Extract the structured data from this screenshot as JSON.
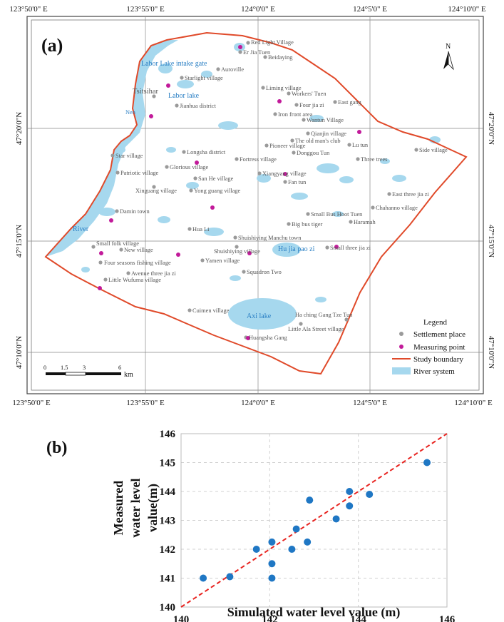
{
  "panel_a": {
    "label": "(a)",
    "top_ticks": [
      "123°50'0\" E",
      "123°55'0\" E",
      "124°0'0\" E",
      "124°5'0\" E",
      "124°10'0\" E"
    ],
    "bottom_ticks": [
      "123°50'0\" E",
      "123°55'0\" E",
      "124°0'0\" E",
      "124°5'0\" E",
      "124°10'0\" E"
    ],
    "left_ticks": [
      "47°20'0\"N",
      "47°15'0\"N",
      "47°10'0\"N"
    ],
    "right_ticks": [
      "47°20'0\"N",
      "47°15'0\"N",
      "47°10'0\"N"
    ],
    "north": "N",
    "scale": {
      "ticks": [
        "0",
        "1.5",
        "3",
        "6"
      ],
      "unit": "km"
    },
    "legend": {
      "title": "Legend",
      "items": [
        "Settlement place",
        "Measuring point",
        "Study boundary",
        "River system"
      ]
    },
    "water_labels": [
      "Labor Lake intake gate",
      "Labor lake",
      "River",
      "Hu jia pao zi",
      "Axi lake"
    ],
    "settlements": [
      "Red Light Village",
      "Er Jia Tuen",
      "Beidaying",
      "Auroville",
      "Starlight village",
      "Tsitsihar",
      "Jianhua district",
      "Nen",
      "Liming village",
      "Workers' Tuen",
      "Four jia zi",
      "East gang",
      "Iron front area",
      "Wantun Village",
      "Qianjin village",
      "The old man's club",
      "Lu tun",
      "Side village",
      "Star village",
      "Longsha district",
      "Pioneer village",
      "Fortress village",
      "Donggou Tun",
      "Three trees",
      "Glorious village",
      "Patriotic village",
      "Xiangyang village",
      "Fan tun",
      "East three jia zi",
      "Xinguang village",
      "Yong guang village",
      "San He village",
      "Chahanno village",
      "Damin town",
      "Small Bus Hoot Tuen",
      "Big bus tiger",
      "Haramah",
      "Hua Li",
      "Shuishiying Manchu town",
      "Small folk village",
      "New village",
      "Shuishiying village",
      "Small three jia zi",
      "Yamen village",
      "Four seasons fishing village",
      "Avenue three jia zi",
      "Squadron Two",
      "Little Wufuma village",
      "Cuimen village",
      "Ha ching Gang Tze Tun",
      "Little Ala Street village",
      "Huangsha Gang"
    ]
  },
  "panel_b": {
    "label": "(b)",
    "colors": {
      "points": "#1f77c4",
      "line": "#e8231f"
    }
  },
  "chart_data": {
    "type": "scatter",
    "xlabel": "Simulated water level value (m)",
    "ylabel": "Measured water level value(m)",
    "xlim": [
      140,
      146
    ],
    "ylim": [
      140,
      146
    ],
    "xticks": [
      "140",
      "142",
      "144",
      "146"
    ],
    "yticks": [
      "140",
      "141",
      "142",
      "143",
      "144",
      "145",
      "146"
    ],
    "grid": true,
    "reference_line": "1:1",
    "points": [
      {
        "x": 140.5,
        "y": 141.0
      },
      {
        "x": 141.1,
        "y": 141.05
      },
      {
        "x": 141.7,
        "y": 142.0
      },
      {
        "x": 142.05,
        "y": 142.25
      },
      {
        "x": 142.05,
        "y": 141.5
      },
      {
        "x": 142.05,
        "y": 141.0
      },
      {
        "x": 142.5,
        "y": 142.0
      },
      {
        "x": 142.6,
        "y": 142.7
      },
      {
        "x": 142.85,
        "y": 142.25
      },
      {
        "x": 142.9,
        "y": 143.7
      },
      {
        "x": 143.5,
        "y": 143.05
      },
      {
        "x": 143.8,
        "y": 144.0
      },
      {
        "x": 143.8,
        "y": 143.5
      },
      {
        "x": 144.25,
        "y": 143.9
      },
      {
        "x": 145.55,
        "y": 145.0
      }
    ]
  }
}
